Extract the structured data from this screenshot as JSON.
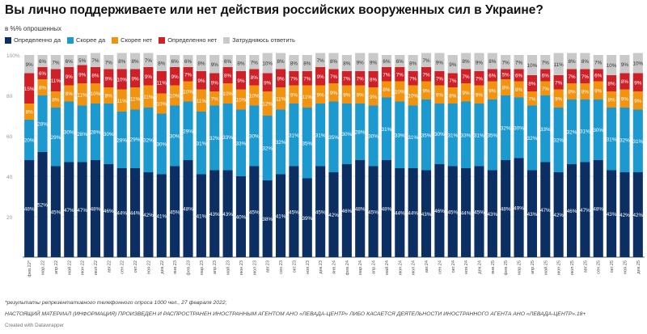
{
  "title": "Вы лично поддерживаете или нет действия российских вооруженных сил в Украине?",
  "subtitle": "в %% опрошенных",
  "note": "*результаты репрезентативного телефонного опроса 1000 чел., 27 февраля 2022;",
  "agent_notice": "НАСТОЯЩИЙ МАТЕРИАЛ (ИНФОРМАЦИЯ) ПРОИЗВЕДЕН И РАСПРОСТРАНЕН ИНОСТРАННЫМ АГЕНТОМ АНО «ЛЕВАДА-ЦЕНТР» ЛИБО КАСАЕТСЯ ДЕЯТЕЛЬНОСТИ ИНОСТРАННОГО АГЕНТА АНО «ЛЕВАДА-ЦЕНТР».18+",
  "credit": "Created with Datawrapper",
  "chart_data": {
    "type": "bar",
    "stacked": true,
    "ylim": [
      0,
      100
    ],
    "yticks": [
      "20",
      "40",
      "60",
      "80",
      "100%"
    ],
    "grid": true,
    "legend_position": "top-left",
    "categories": [
      "фев.22*",
      "мар.22",
      "апр.22",
      "май.22",
      "июн.22",
      "июл.22",
      "авг.22",
      "сен.22",
      "окт.22",
      "ноя.22",
      "дек.22",
      "янв.23",
      "фев.23",
      "мар.23",
      "апр.23",
      "май.23",
      "июн.23",
      "июл.23",
      "авг.23",
      "сен.23",
      "окт.23",
      "ноя.23",
      "дек.23",
      "янв.24",
      "фев.24",
      "мар.24",
      "апр.24",
      "май.24",
      "июн.24",
      "июл.24",
      "авг.24",
      "сен.24",
      "окт.24",
      "ноя.24",
      "дек.24",
      "янв.25",
      "фев.25",
      "мар.25",
      "апр.25",
      "май.25",
      "июн.25",
      "июл.25",
      "авг.25",
      "сен.25",
      "окт.25",
      "ноя.25",
      "дек.25"
    ],
    "series": [
      {
        "name": "Определенно да",
        "color": "#0b2f63",
        "label_color": "#ffffff",
        "values": [
          48,
          52,
          45,
          47,
          47,
          48,
          46,
          44,
          44,
          42,
          41,
          45,
          48,
          41,
          43,
          43,
          40,
          45,
          38,
          41,
          45,
          39,
          45,
          42,
          46,
          48,
          45,
          48,
          44,
          44,
          43,
          46,
          45,
          44,
          45,
          43,
          48,
          49,
          43,
          47,
          42,
          46,
          47,
          48,
          43,
          42,
          42
        ]
      },
      {
        "name": "Скорее да",
        "color": "#1c9ad0",
        "label_color": "#ffffff",
        "values": [
          20,
          28,
          29,
          30,
          28,
          28,
          30,
          28,
          29,
          32,
          30,
          30,
          29,
          31,
          32,
          33,
          33,
          30,
          32,
          32,
          31,
          35,
          31,
          35,
          30,
          28,
          30,
          31,
          33,
          31,
          35,
          30,
          31,
          33,
          31,
          35,
          32,
          30,
          32,
          33,
          32,
          32,
          31,
          30,
          31,
          32,
          31
        ]
      },
      {
        "name": "Скорее нет",
        "color": "#f2930f",
        "label_color": "#ffffff",
        "values": [
          8,
          8,
          8,
          8,
          11,
          10,
          8,
          11,
          11,
          11,
          10,
          10,
          10,
          11,
          7,
          10,
          10,
          10,
          12,
          11,
          9,
          11,
          9,
          9,
          9,
          9,
          9,
          8,
          10,
          10,
          9,
          9,
          8,
          9,
          9,
          9,
          8,
          8,
          7,
          7,
          9,
          8,
          8,
          9,
          8,
          9,
          9
        ]
      },
      {
        "name": "Определенно нет",
        "color": "#cf2027",
        "label_color": "#ffffff",
        "values": [
          15,
          6,
          11,
          9,
          9,
          8,
          9,
          10,
          9,
          9,
          11,
          9,
          7,
          9,
          9,
          8,
          9,
          8,
          9,
          9,
          7,
          7,
          9,
          7,
          7,
          7,
          8,
          7,
          7,
          7,
          7,
          7,
          7,
          7,
          7,
          6,
          5,
          6,
          8,
          6,
          7,
          7,
          7,
          6,
          8,
          8,
          9
        ]
      },
      {
        "name": "Затрудняюсь ответить",
        "color": "#c9c9c9",
        "label_color": "#333333",
        "values": [
          9,
          6,
          7,
          6,
          5,
          7,
          7,
          8,
          8,
          7,
          8,
          6,
          6,
          8,
          9,
          6,
          8,
          7,
          10,
          8,
          8,
          8,
          7,
          8,
          8,
          9,
          9,
          6,
          6,
          8,
          7,
          9,
          9,
          8,
          9,
          8,
          7,
          7,
          10,
          7,
          11,
          8,
          8,
          7,
          10,
          9,
          10
        ]
      }
    ]
  }
}
